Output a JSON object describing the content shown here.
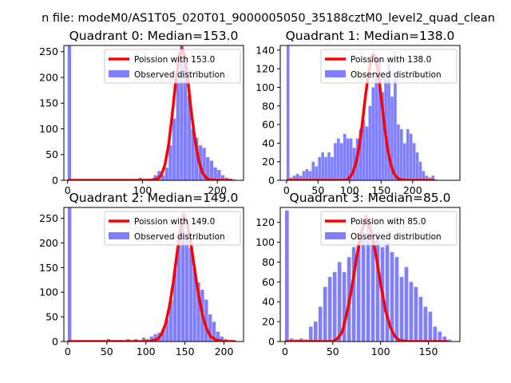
{
  "figure": {
    "suptitle": "n file: modeM0/AS1T05_020T01_9000005050_35188cztM0_level2_quad_clean"
  },
  "chart_data": [
    {
      "type": "histogram",
      "title": "Quadrant 0: Median=153.0",
      "median": 153.0,
      "xlim": [
        -5,
        235
      ],
      "ylim": [
        0,
        262
      ],
      "xticks": [
        0,
        100,
        200
      ],
      "yticks": [
        0,
        50,
        100,
        150,
        200,
        250
      ],
      "bin_width": 4.6,
      "legend": {
        "line": "Poission with 153.0",
        "bars": "Observed distribution"
      },
      "bars": [
        [
          0,
          262
        ],
        [
          95,
          5
        ],
        [
          100,
          3
        ],
        [
          105,
          3
        ],
        [
          110,
          3
        ],
        [
          115,
          10
        ],
        [
          120,
          18
        ],
        [
          125,
          10
        ],
        [
          130,
          25
        ],
        [
          135,
          68
        ],
        [
          140,
          120
        ],
        [
          145,
          215
        ],
        [
          150,
          262
        ],
        [
          155,
          230
        ],
        [
          160,
          165
        ],
        [
          165,
          100
        ],
        [
          170,
          83
        ],
        [
          175,
          68
        ],
        [
          180,
          63
        ],
        [
          185,
          45
        ],
        [
          190,
          38
        ],
        [
          195,
          25
        ],
        [
          200,
          20
        ],
        [
          205,
          10
        ],
        [
          210,
          5
        ],
        [
          215,
          3
        ],
        [
          220,
          2
        ]
      ],
      "poisson_curve": [
        [
          0,
          0
        ],
        [
          110,
          0
        ],
        [
          120,
          3
        ],
        [
          125,
          10
        ],
        [
          130,
          30
        ],
        [
          135,
          70
        ],
        [
          140,
          130
        ],
        [
          145,
          200
        ],
        [
          150,
          245
        ],
        [
          153,
          255
        ],
        [
          156,
          245
        ],
        [
          160,
          205
        ],
        [
          165,
          135
        ],
        [
          170,
          80
        ],
        [
          175,
          40
        ],
        [
          180,
          15
        ],
        [
          185,
          5
        ],
        [
          190,
          1
        ],
        [
          200,
          0
        ],
        [
          220,
          0
        ]
      ]
    },
    {
      "type": "histogram",
      "title": "Quadrant 1: Median=138.0",
      "median": 138.0,
      "xlim": [
        -10,
        275
      ],
      "ylim": [
        0,
        145
      ],
      "xticks": [
        0,
        50,
        100,
        150,
        200
      ],
      "yticks": [
        0,
        20,
        40,
        60,
        80,
        100,
        120,
        140
      ],
      "bin_width": 4.6,
      "legend": {
        "line": "Poission with 138.0",
        "bars": "Observed distribution"
      },
      "bars": [
        [
          0,
          145
        ],
        [
          5,
          3
        ],
        [
          10,
          5
        ],
        [
          15,
          7
        ],
        [
          20,
          5
        ],
        [
          25,
          10
        ],
        [
          30,
          12
        ],
        [
          35,
          10
        ],
        [
          40,
          20
        ],
        [
          45,
          15
        ],
        [
          50,
          25
        ],
        [
          55,
          30
        ],
        [
          60,
          25
        ],
        [
          65,
          30
        ],
        [
          70,
          25
        ],
        [
          75,
          40
        ],
        [
          80,
          45
        ],
        [
          85,
          40
        ],
        [
          90,
          50
        ],
        [
          95,
          45
        ],
        [
          100,
          45
        ],
        [
          105,
          35
        ],
        [
          110,
          45
        ],
        [
          115,
          55
        ],
        [
          120,
          65
        ],
        [
          125,
          58
        ],
        [
          130,
          80
        ],
        [
          135,
          100
        ],
        [
          140,
          115
        ],
        [
          145,
          130
        ],
        [
          150,
          95
        ],
        [
          155,
          110
        ],
        [
          160,
          125
        ],
        [
          165,
          90
        ],
        [
          170,
          110
        ],
        [
          175,
          60
        ],
        [
          180,
          55
        ],
        [
          185,
          40
        ],
        [
          190,
          55
        ],
        [
          195,
          50
        ],
        [
          200,
          40
        ],
        [
          205,
          30
        ],
        [
          210,
          20
        ],
        [
          215,
          10
        ],
        [
          220,
          5
        ],
        [
          225,
          3
        ],
        [
          230,
          5
        ],
        [
          235,
          1
        ]
      ],
      "poisson_curve": [
        [
          0,
          0
        ],
        [
          95,
          0
        ],
        [
          100,
          3
        ],
        [
          105,
          8
        ],
        [
          110,
          18
        ],
        [
          115,
          35
        ],
        [
          120,
          60
        ],
        [
          125,
          90
        ],
        [
          130,
          115
        ],
        [
          135,
          132
        ],
        [
          138,
          135
        ],
        [
          141,
          132
        ],
        [
          145,
          118
        ],
        [
          150,
          90
        ],
        [
          155,
          60
        ],
        [
          160,
          35
        ],
        [
          165,
          18
        ],
        [
          170,
          8
        ],
        [
          175,
          3
        ],
        [
          180,
          1
        ],
        [
          190,
          0
        ],
        [
          235,
          0
        ]
      ]
    },
    {
      "type": "histogram",
      "title": "Quadrant 2: Median=149.0",
      "median": 149.0,
      "xlim": [
        -5,
        225
      ],
      "ylim": [
        0,
        272
      ],
      "xticks": [
        0,
        50,
        100,
        150,
        200
      ],
      "yticks": [
        0,
        50,
        100,
        150,
        200,
        250
      ],
      "bin_width": 4.5,
      "legend": {
        "line": "Poission with 149.0",
        "bars": "Observed distribution"
      },
      "bars": [
        [
          0,
          272
        ],
        [
          50,
          5
        ],
        [
          65,
          3
        ],
        [
          75,
          5
        ],
        [
          85,
          5
        ],
        [
          95,
          8
        ],
        [
          100,
          5
        ],
        [
          105,
          10
        ],
        [
          110,
          15
        ],
        [
          115,
          18
        ],
        [
          120,
          25
        ],
        [
          125,
          45
        ],
        [
          130,
          85
        ],
        [
          135,
          145
        ],
        [
          140,
          205
        ],
        [
          145,
          260
        ],
        [
          150,
          215
        ],
        [
          155,
          190
        ],
        [
          160,
          150
        ],
        [
          165,
          120
        ],
        [
          170,
          105
        ],
        [
          175,
          85
        ],
        [
          180,
          55
        ],
        [
          185,
          40
        ],
        [
          190,
          20
        ],
        [
          195,
          10
        ],
        [
          200,
          5
        ],
        [
          205,
          3
        ]
      ],
      "poisson_curve": [
        [
          0,
          0
        ],
        [
          105,
          0
        ],
        [
          115,
          5
        ],
        [
          120,
          15
        ],
        [
          125,
          35
        ],
        [
          130,
          70
        ],
        [
          135,
          120
        ],
        [
          140,
          180
        ],
        [
          145,
          235
        ],
        [
          149,
          255
        ],
        [
          153,
          240
        ],
        [
          158,
          195
        ],
        [
          163,
          140
        ],
        [
          168,
          90
        ],
        [
          173,
          50
        ],
        [
          178,
          25
        ],
        [
          183,
          10
        ],
        [
          190,
          3
        ],
        [
          200,
          0
        ],
        [
          215,
          0
        ]
      ]
    },
    {
      "type": "histogram",
      "title": "Quadrant 3: Median=85.0",
      "median": 85.0,
      "xlim": [
        -5,
        183
      ],
      "ylim": [
        0,
        135
      ],
      "xticks": [
        0,
        50,
        100,
        150
      ],
      "yticks": [
        0,
        20,
        40,
        60,
        80,
        100,
        120
      ],
      "bin_width": 3.9,
      "legend": {
        "line": "Poission with 85.0",
        "bars": "Observed distribution"
      },
      "bars": [
        [
          0,
          132
        ],
        [
          5,
          3
        ],
        [
          10,
          2
        ],
        [
          15,
          3
        ],
        [
          20,
          2
        ],
        [
          25,
          15
        ],
        [
          30,
          20
        ],
        [
          35,
          35
        ],
        [
          40,
          55
        ],
        [
          45,
          65
        ],
        [
          50,
          70
        ],
        [
          55,
          80
        ],
        [
          60,
          70
        ],
        [
          65,
          85
        ],
        [
          70,
          95
        ],
        [
          75,
          100
        ],
        [
          80,
          105
        ],
        [
          85,
          120
        ],
        [
          90,
          100
        ],
        [
          95,
          110
        ],
        [
          100,
          95
        ],
        [
          105,
          100
        ],
        [
          110,
          90
        ],
        [
          115,
          85
        ],
        [
          120,
          65
        ],
        [
          125,
          75
        ],
        [
          130,
          60
        ],
        [
          135,
          55
        ],
        [
          140,
          45
        ],
        [
          145,
          35
        ],
        [
          150,
          30
        ],
        [
          155,
          15
        ],
        [
          160,
          10
        ],
        [
          165,
          5
        ],
        [
          170,
          2
        ]
      ],
      "poisson_curve": [
        [
          0,
          0
        ],
        [
          50,
          0
        ],
        [
          55,
          3
        ],
        [
          60,
          10
        ],
        [
          65,
          30
        ],
        [
          70,
          55
        ],
        [
          75,
          85
        ],
        [
          80,
          110
        ],
        [
          85,
          125
        ],
        [
          90,
          112
        ],
        [
          95,
          88
        ],
        [
          100,
          58
        ],
        [
          105,
          32
        ],
        [
          110,
          15
        ],
        [
          115,
          5
        ],
        [
          120,
          1
        ],
        [
          130,
          0
        ],
        [
          170,
          0
        ]
      ]
    }
  ]
}
